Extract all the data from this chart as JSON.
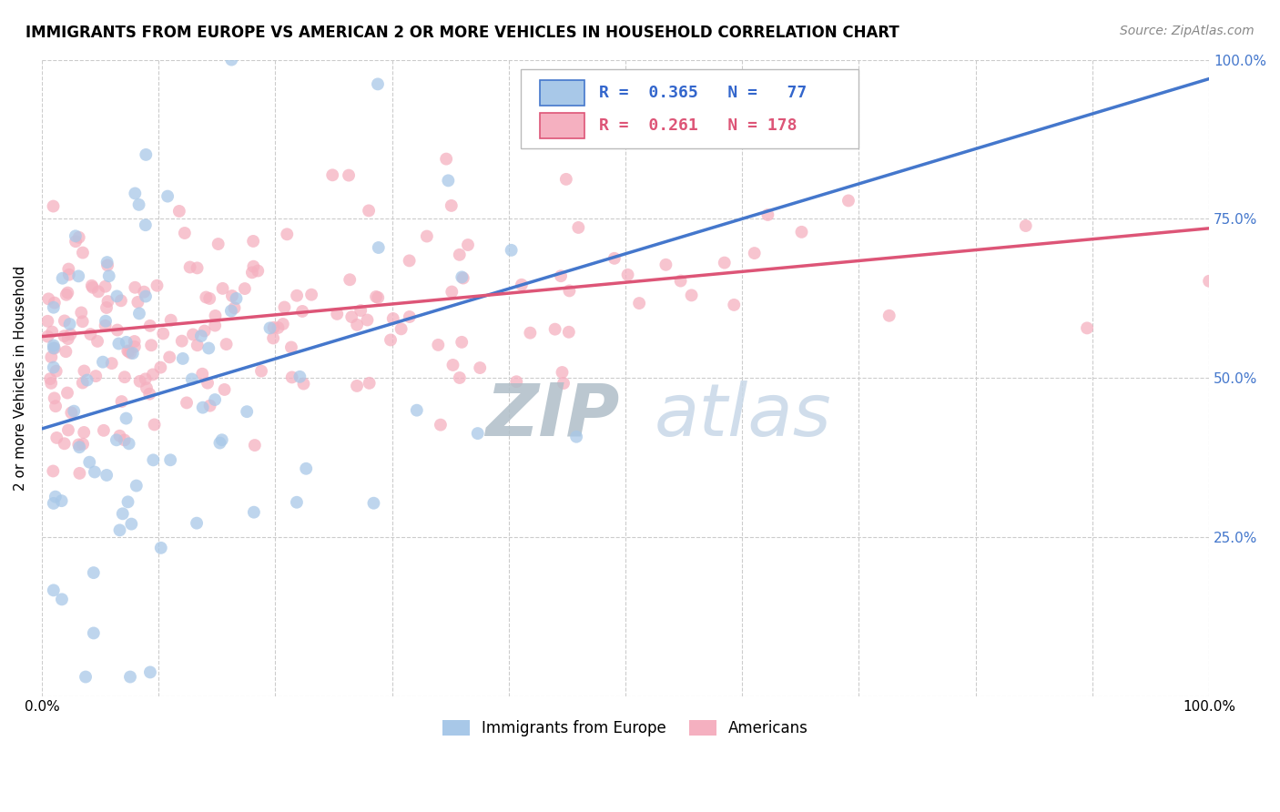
{
  "title": "IMMIGRANTS FROM EUROPE VS AMERICAN 2 OR MORE VEHICLES IN HOUSEHOLD CORRELATION CHART",
  "source": "Source: ZipAtlas.com",
  "ylabel": "2 or more Vehicles in Household",
  "xlim": [
    0.0,
    1.0
  ],
  "ylim": [
    0.0,
    1.0
  ],
  "color_blue": "#a8c8e8",
  "color_pink": "#f5b0c0",
  "line_blue": "#4477cc",
  "line_pink": "#dd5577",
  "watermark_color": "#c8d8e8",
  "blue_line_x": [
    0.0,
    1.0
  ],
  "blue_line_y": [
    0.42,
    0.97
  ],
  "pink_line_x": [
    0.0,
    1.0
  ],
  "pink_line_y": [
    0.565,
    0.735
  ],
  "legend_text_color": "#3366cc",
  "legend_r_color": "#000000",
  "grid_color": "#cccccc",
  "right_tick_color": "#4477cc"
}
